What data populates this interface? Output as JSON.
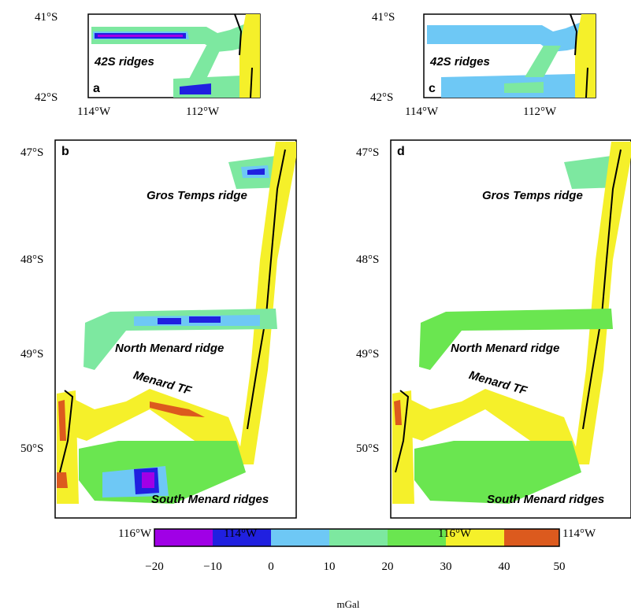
{
  "panels": [
    {
      "id": "a",
      "letter": "a",
      "y_ticks": [
        "41°S",
        "42°S"
      ],
      "x_ticks": [
        "114°W",
        "112°W"
      ],
      "labels": {
        "main": "42S ridges"
      }
    },
    {
      "id": "b",
      "letter": "b",
      "y_ticks": [
        "47°S",
        "48°S",
        "49°S",
        "50°S"
      ],
      "x_ticks": [
        "116°W",
        "114°W"
      ],
      "labels": {
        "gros": "Gros Temps ridge",
        "north": "North Menard ridge",
        "tf": "Menard TF",
        "south": "South Menard ridges"
      }
    },
    {
      "id": "c",
      "letter": "c",
      "y_ticks": [
        "41°S",
        "42°S"
      ],
      "x_ticks": [
        "114°W",
        "112°W"
      ],
      "labels": {
        "main": "42S ridges"
      }
    },
    {
      "id": "d",
      "letter": "d",
      "y_ticks": [
        "47°S",
        "48°S",
        "49°S",
        "50°S"
      ],
      "x_ticks": [
        "116°W",
        "114°W"
      ],
      "labels": {
        "gros": "Gros Temps ridge",
        "north": "North Menard ridge",
        "tf": "Menard TF",
        "south": "South Menard ridges"
      }
    }
  ],
  "colorbar": {
    "tick_labels": [
      "−20",
      "−10",
      "0",
      "10",
      "20",
      "30",
      "40",
      "50"
    ],
    "unit": "mGal",
    "colors": [
      "#a000e6",
      "#2020e0",
      "#6ec8f5",
      "#7de8a0",
      "#6ae650",
      "#f5f02a",
      "#dc5a1e"
    ]
  }
}
